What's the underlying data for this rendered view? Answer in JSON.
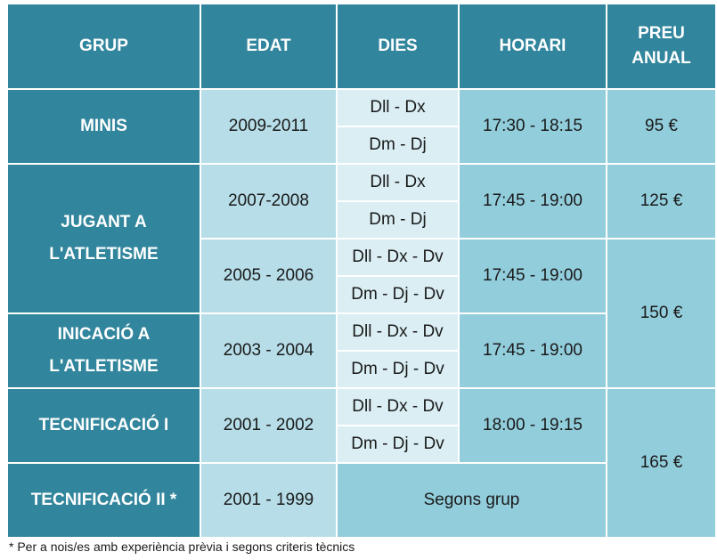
{
  "headers": {
    "group": "GRUP",
    "age": "EDAT",
    "days": "DIES",
    "schedule": "HORARI",
    "price": "PREU\nANUAL"
  },
  "groups": {
    "minis": "MINIS",
    "jugant": "JUGANT A\nL'ATLETISME",
    "iniciacio": "INICACIÓ A\nL'ATLETISME",
    "tecnificacio1": "TECNIFICACIÓ I",
    "tecnificacio2": "TECNIFICACIÓ II *"
  },
  "ages": {
    "minis": "2009-2011",
    "jugant1": "2007-2008",
    "jugant2": "2005 - 2006",
    "iniciacio": "2003 - 2004",
    "tecnificacio1": "2001 - 2002",
    "tecnificacio2": "2001 - 1999"
  },
  "days": {
    "minis_a": "Dll - Dx",
    "minis_b": "Dm - Dj",
    "jugant1_a": "Dll - Dx",
    "jugant1_b": "Dm - Dj",
    "jugant2_a": "Dll - Dx - Dv",
    "jugant2_b": "Dm - Dj - Dv",
    "iniciacio_a": "Dll - Dx - Dv",
    "iniciacio_b": "Dm - Dj - Dv",
    "tecnificacio1_a": "Dll - Dx - Dv",
    "tecnificacio1_b": "Dm - Dj - Dv"
  },
  "times": {
    "minis": "17:30 - 18:15",
    "jugant1": "17:45 - 19:00",
    "jugant2": "17:45 - 19:00",
    "iniciacio": "17:45 - 19:00",
    "tecnificacio1": "18:00 - 19:15",
    "tecnificacio2": "Segons grup"
  },
  "prices": {
    "minis": "95 €",
    "jugant1": "125 €",
    "jugant2_iniciacio": "150 €",
    "tecnificacio": "165 €"
  },
  "footnote": "* Per a nois/es amb experiència prèvia i segons criteris tècnics",
  "colors": {
    "header": "#31859c",
    "age": "#b6dde8",
    "days": "#daeef3",
    "time": "#92cddc"
  }
}
